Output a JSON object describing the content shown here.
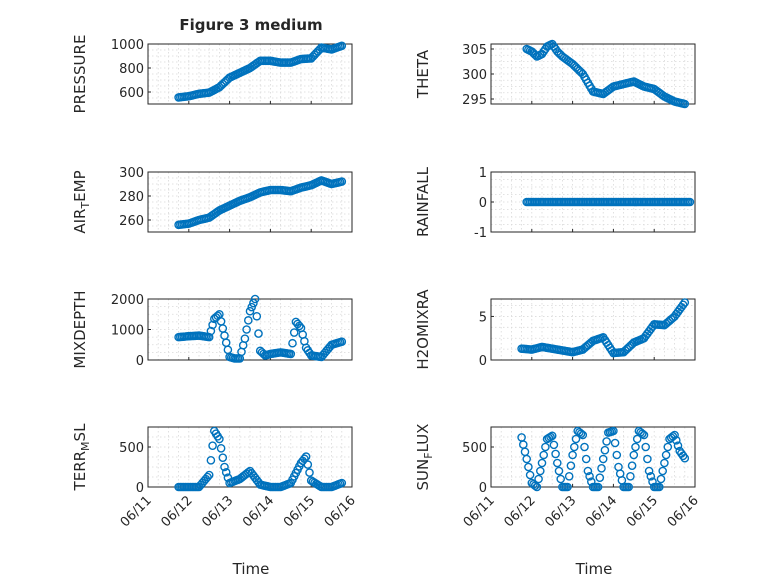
{
  "figure": {
    "title": "Figure 3 medium",
    "time_label": "Time"
  },
  "chart_data": [
    {
      "type": "scatter",
      "ylabel": "PRESSURE",
      "ylim": [
        500,
        1000
      ],
      "yticks": [
        600,
        800,
        1000
      ],
      "xlim": [
        "06/11",
        "06/16"
      ],
      "grid": "on",
      "x": [
        "06/11 18:00",
        "06/12 00:00",
        "06/12 06:00",
        "06/12 12:00",
        "06/12 18:00",
        "06/13 00:00",
        "06/13 06:00",
        "06/13 12:00",
        "06/13 18:00",
        "06/14 00:00",
        "06/14 06:00",
        "06/14 12:00",
        "06/14 18:00",
        "06/15 00:00",
        "06/15 06:00",
        "06/15 12:00",
        "06/15 18:00"
      ],
      "y": [
        555,
        565,
        585,
        595,
        640,
        720,
        760,
        800,
        860,
        860,
        845,
        845,
        875,
        880,
        970,
        955,
        985
      ]
    },
    {
      "type": "scatter",
      "ylabel": "THETA",
      "ylim": [
        294,
        306
      ],
      "yticks": [
        295,
        300,
        305
      ],
      "xlim": [
        "06/11",
        "06/16"
      ],
      "grid": "on",
      "x": [
        "06/11 21:00",
        "06/12 00:00",
        "06/12 03:00",
        "06/12 06:00",
        "06/12 09:00",
        "06/12 12:00",
        "06/12 15:00",
        "06/12 18:00",
        "06/13 00:00",
        "06/13 06:00",
        "06/13 12:00",
        "06/13 18:00",
        "06/14 00:00",
        "06/14 06:00",
        "06/14 12:00",
        "06/14 18:00",
        "06/15 00:00",
        "06/15 06:00",
        "06/15 12:00",
        "06/15 18:00"
      ],
      "y": [
        305,
        304.5,
        303.5,
        304,
        305.5,
        306,
        304.5,
        303.5,
        302,
        300,
        296.5,
        296,
        297.5,
        298,
        298.5,
        297.5,
        297,
        295.5,
        294.5,
        294
      ]
    },
    {
      "type": "scatter",
      "ylabel": "AIR_TEMP",
      "ylim": [
        250,
        300
      ],
      "yticks": [
        260,
        280,
        300
      ],
      "xlim": [
        "06/11",
        "06/16"
      ],
      "grid": "on",
      "x": [
        "06/11 18:00",
        "06/12 00:00",
        "06/12 06:00",
        "06/12 12:00",
        "06/12 18:00",
        "06/13 00:00",
        "06/13 06:00",
        "06/13 12:00",
        "06/13 18:00",
        "06/14 00:00",
        "06/14 06:00",
        "06/14 12:00",
        "06/14 18:00",
        "06/15 00:00",
        "06/15 06:00",
        "06/15 12:00",
        "06/15 18:00"
      ],
      "y": [
        256,
        257,
        260,
        262,
        268,
        272,
        276,
        279,
        283,
        285,
        285,
        284,
        287,
        289,
        293,
        290,
        292
      ]
    },
    {
      "type": "scatter",
      "ylabel": "RAINFALL",
      "ylim": [
        -1,
        1
      ],
      "yticks": [
        -1,
        0,
        1
      ],
      "xlim": [
        "06/11",
        "06/16"
      ],
      "grid": "on",
      "x": [
        "06/11 21:00",
        "06/12 06:00",
        "06/12 18:00",
        "06/13 06:00",
        "06/13 18:00",
        "06/14 06:00",
        "06/14 18:00",
        "06/15 06:00",
        "06/15 21:00"
      ],
      "y": [
        0,
        0,
        0,
        0,
        0,
        0,
        0,
        0,
        0
      ]
    },
    {
      "type": "scatter",
      "ylabel": "MIXDEPTH",
      "ylim": [
        0,
        2000
      ],
      "yticks": [
        0,
        1000,
        2000
      ],
      "xlim": [
        "06/11",
        "06/16"
      ],
      "grid": "on",
      "x": [
        "06/11 18:00",
        "06/12 00:00",
        "06/12 06:00",
        "06/12 12:00",
        "06/12 15:00",
        "06/12 18:00",
        "06/12 21:00",
        "06/13 00:00",
        "06/13 03:00",
        "06/13 06:00",
        "06/13 09:00",
        "06/13 12:00",
        "06/13 15:00",
        "06/13 18:00",
        "06/13 21:00",
        "06/14 00:00",
        "06/14 06:00",
        "06/14 12:00",
        "06/14 15:00",
        "06/14 18:00",
        "06/14 21:00",
        "06/15 00:00",
        "06/15 06:00",
        "06/15 12:00",
        "06/15 18:00"
      ],
      "y": [
        750,
        780,
        800,
        750,
        1350,
        1500,
        800,
        100,
        50,
        50,
        700,
        1600,
        2000,
        300,
        150,
        200,
        250,
        200,
        1250,
        1050,
        400,
        150,
        100,
        500,
        600
      ]
    },
    {
      "type": "scatter",
      "ylabel": "H2OMIXRA",
      "ylim": [
        0,
        7
      ],
      "yticks": [
        0,
        5
      ],
      "xlim": [
        "06/11",
        "06/16"
      ],
      "grid": "on",
      "x": [
        "06/11 18:00",
        "06/12 00:00",
        "06/12 06:00",
        "06/12 12:00",
        "06/12 18:00",
        "06/13 00:00",
        "06/13 06:00",
        "06/13 12:00",
        "06/13 18:00",
        "06/14 00:00",
        "06/14 06:00",
        "06/14 12:00",
        "06/14 18:00",
        "06/15 00:00",
        "06/15 06:00",
        "06/15 12:00",
        "06/15 18:00"
      ],
      "y": [
        1.3,
        1.2,
        1.5,
        1.3,
        1.1,
        0.9,
        1.2,
        2.2,
        2.6,
        0.8,
        0.9,
        2.0,
        2.5,
        4.1,
        4.0,
        5.0,
        6.6
      ]
    },
    {
      "type": "scatter",
      "ylabel": "TERR_MSL",
      "ylim": [
        0,
        750
      ],
      "yticks": [
        0,
        500
      ],
      "xlim": [
        "06/11",
        "06/16"
      ],
      "grid": "on",
      "x": [
        "06/11 18:00",
        "06/12 00:00",
        "06/12 06:00",
        "06/12 12:00",
        "06/12 15:00",
        "06/12 18:00",
        "06/12 21:00",
        "06/13 00:00",
        "06/13 06:00",
        "06/13 12:00",
        "06/13 18:00",
        "06/14 00:00",
        "06/14 06:00",
        "06/14 12:00",
        "06/14 18:00",
        "06/14 21:00",
        "06/15 00:00",
        "06/15 06:00",
        "06/15 12:00",
        "06/15 18:00"
      ],
      "y": [
        0,
        0,
        0,
        150,
        700,
        600,
        250,
        50,
        100,
        200,
        30,
        0,
        0,
        50,
        300,
        380,
        80,
        0,
        0,
        50
      ]
    },
    {
      "type": "scatter",
      "ylabel": "SUN_FLUX",
      "ylim": [
        0,
        750
      ],
      "yticks": [
        0,
        500
      ],
      "xlim": [
        "06/11",
        "06/16"
      ],
      "grid": "on",
      "x": [
        "06/11 18:00",
        "06/11 21:00",
        "06/12 00:00",
        "06/12 03:00",
        "06/12 06:00",
        "06/12 09:00",
        "06/12 12:00",
        "06/12 15:00",
        "06/12 18:00",
        "06/12 21:00",
        "06/13 00:00",
        "06/13 03:00",
        "06/13 06:00",
        "06/13 09:00",
        "06/13 12:00",
        "06/13 15:00",
        "06/13 18:00",
        "06/13 21:00",
        "06/14 00:00",
        "06/14 03:00",
        "06/14 06:00",
        "06/14 09:00",
        "06/14 12:00",
        "06/14 15:00",
        "06/14 18:00",
        "06/14 21:00",
        "06/15 00:00",
        "06/15 03:00",
        "06/15 06:00",
        "06/15 09:00",
        "06/15 12:00",
        "06/15 15:00",
        "06/15 18:00"
      ],
      "y": [
        620,
        350,
        50,
        0,
        300,
        600,
        640,
        300,
        0,
        0,
        400,
        700,
        650,
        200,
        0,
        0,
        350,
        680,
        700,
        250,
        0,
        0,
        400,
        700,
        650,
        200,
        0,
        0,
        300,
        600,
        650,
        450,
        360
      ]
    }
  ]
}
